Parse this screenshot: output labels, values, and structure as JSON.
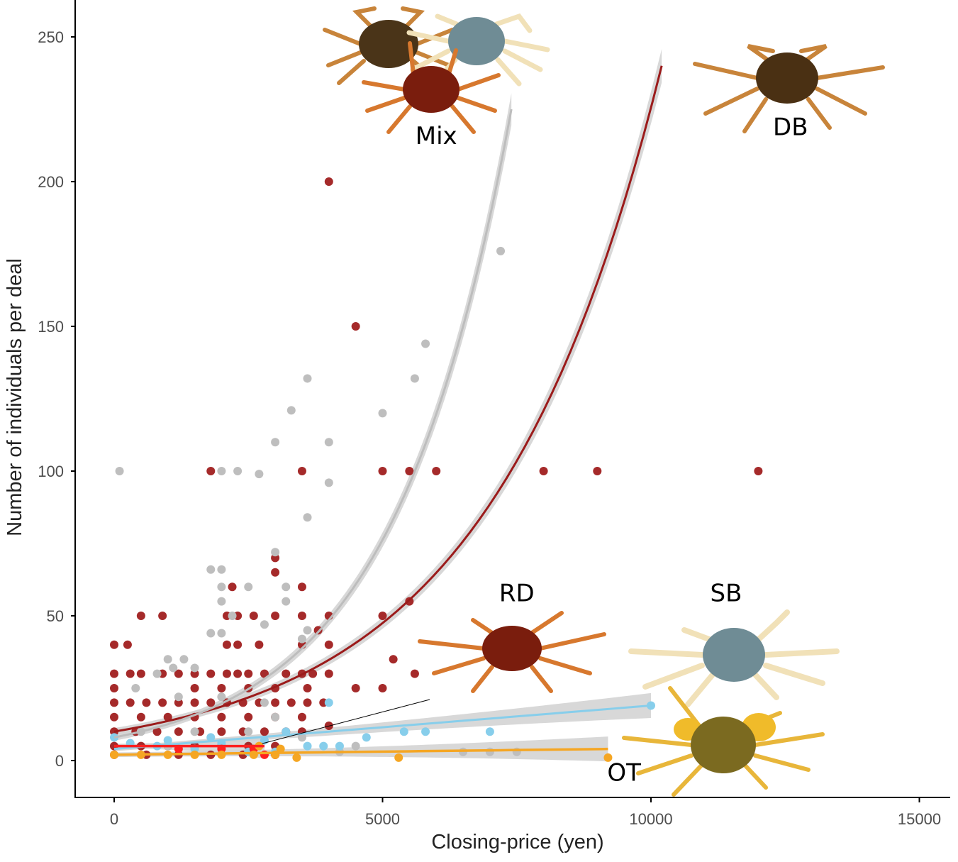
{
  "chart_data": {
    "type": "scatter",
    "title": "",
    "xlabel": "Closing-price (yen)",
    "ylabel": "Number of individuals per deal",
    "xlim": [
      -800,
      15600
    ],
    "ylim": [
      -13,
      262
    ],
    "xticks": [
      0,
      5000,
      10000,
      15000
    ],
    "yticks": [
      0,
      50,
      100,
      150,
      200,
      250
    ],
    "grid": false,
    "legend": "none (series identified by crab photo labels)",
    "series": [
      {
        "name": "DB",
        "color": "#a52a2a",
        "points": [
          [
            4000,
            200
          ],
          [
            4500,
            150
          ],
          [
            1800,
            100
          ],
          [
            3500,
            100
          ],
          [
            5000,
            100
          ],
          [
            5500,
            100
          ],
          [
            6000,
            100
          ],
          [
            8000,
            100
          ],
          [
            9000,
            100
          ],
          [
            12000,
            100
          ],
          [
            3000,
            70
          ],
          [
            3500,
            60
          ],
          [
            2200,
            60
          ],
          [
            5500,
            55
          ],
          [
            3000,
            65
          ],
          [
            500,
            50
          ],
          [
            900,
            50
          ],
          [
            2100,
            50
          ],
          [
            2300,
            50
          ],
          [
            2600,
            50
          ],
          [
            3000,
            50
          ],
          [
            3500,
            50
          ],
          [
            4000,
            50
          ],
          [
            5000,
            50
          ],
          [
            0,
            40
          ],
          [
            250,
            40
          ],
          [
            2100,
            40
          ],
          [
            2300,
            40
          ],
          [
            2700,
            40
          ],
          [
            3500,
            40
          ],
          [
            4000,
            40
          ],
          [
            3800,
            45
          ],
          [
            0,
            30
          ],
          [
            300,
            30
          ],
          [
            500,
            30
          ],
          [
            900,
            30
          ],
          [
            1200,
            30
          ],
          [
            1500,
            30
          ],
          [
            1800,
            30
          ],
          [
            2100,
            30
          ],
          [
            2300,
            30
          ],
          [
            2500,
            30
          ],
          [
            2800,
            30
          ],
          [
            3200,
            30
          ],
          [
            3500,
            30
          ],
          [
            3700,
            30
          ],
          [
            4000,
            30
          ],
          [
            5200,
            35
          ],
          [
            5600,
            30
          ],
          [
            0,
            25
          ],
          [
            1500,
            25
          ],
          [
            2000,
            25
          ],
          [
            2500,
            25
          ],
          [
            3000,
            25
          ],
          [
            3600,
            25
          ],
          [
            4500,
            25
          ],
          [
            5000,
            25
          ],
          [
            0,
            20
          ],
          [
            300,
            20
          ],
          [
            600,
            20
          ],
          [
            900,
            20
          ],
          [
            1200,
            20
          ],
          [
            1500,
            20
          ],
          [
            1800,
            20
          ],
          [
            2100,
            20
          ],
          [
            2400,
            20
          ],
          [
            2700,
            20
          ],
          [
            3000,
            20
          ],
          [
            3300,
            20
          ],
          [
            3600,
            20
          ],
          [
            3900,
            20
          ],
          [
            0,
            15
          ],
          [
            500,
            15
          ],
          [
            1000,
            15
          ],
          [
            1500,
            15
          ],
          [
            2000,
            15
          ],
          [
            2500,
            15
          ],
          [
            3000,
            15
          ],
          [
            3500,
            15
          ],
          [
            0,
            10
          ],
          [
            400,
            10
          ],
          [
            800,
            10
          ],
          [
            1200,
            10
          ],
          [
            1600,
            10
          ],
          [
            2000,
            10
          ],
          [
            2400,
            10
          ],
          [
            2800,
            10
          ],
          [
            3200,
            10
          ],
          [
            3500,
            10
          ],
          [
            4000,
            12
          ],
          [
            0,
            5
          ],
          [
            500,
            5
          ],
          [
            1000,
            5
          ],
          [
            1500,
            5
          ],
          [
            2000,
            5
          ],
          [
            2500,
            5
          ],
          [
            3000,
            5
          ],
          [
            0,
            2
          ],
          [
            600,
            2
          ],
          [
            1200,
            2
          ],
          [
            1800,
            2
          ],
          [
            2400,
            2
          ],
          [
            3000,
            2
          ]
        ],
        "trend": {
          "kind": "exponential",
          "from": [
            0,
            10
          ],
          "to": [
            10200,
            240
          ]
        }
      },
      {
        "name": "Mix",
        "color": "#bebebe",
        "points": [
          [
            100,
            100
          ],
          [
            2000,
            100
          ],
          [
            2300,
            100
          ],
          [
            2700,
            99
          ],
          [
            3000,
            110
          ],
          [
            4000,
            110
          ],
          [
            3300,
            121
          ],
          [
            3600,
            132
          ],
          [
            5000,
            120
          ],
          [
            5600,
            132
          ],
          [
            5800,
            144
          ],
          [
            7200,
            176
          ],
          [
            4000,
            96
          ],
          [
            3600,
            84
          ],
          [
            3000,
            72
          ],
          [
            1800,
            66
          ],
          [
            2000,
            66
          ],
          [
            2000,
            60
          ],
          [
            2500,
            60
          ],
          [
            3200,
            60
          ],
          [
            2000,
            55
          ],
          [
            3200,
            55
          ],
          [
            2200,
            50
          ],
          [
            3600,
            45
          ],
          [
            2800,
            47
          ],
          [
            1800,
            44
          ],
          [
            2000,
            44
          ],
          [
            3500,
            42
          ],
          [
            1000,
            35
          ],
          [
            1300,
            35
          ],
          [
            800,
            30
          ],
          [
            1100,
            32
          ],
          [
            1500,
            32
          ],
          [
            400,
            25
          ],
          [
            1200,
            22
          ],
          [
            2000,
            22
          ],
          [
            2800,
            20
          ],
          [
            3000,
            15
          ],
          [
            500,
            10
          ],
          [
            1500,
            10
          ],
          [
            2500,
            10
          ],
          [
            3500,
            8
          ],
          [
            4500,
            5
          ],
          [
            3000,
            2
          ],
          [
            4200,
            3
          ],
          [
            7000,
            3
          ],
          [
            7500,
            3
          ],
          [
            6500,
            3
          ],
          [
            1000,
            5
          ]
        ],
        "trend": {
          "kind": "exponential",
          "from": [
            0,
            8
          ],
          "to": [
            7400,
            225
          ]
        }
      },
      {
        "name": "SB",
        "color": "#87ceeb",
        "points": [
          [
            0,
            8
          ],
          [
            300,
            6
          ],
          [
            800,
            5
          ],
          [
            1500,
            4
          ],
          [
            2000,
            6
          ],
          [
            2500,
            3
          ],
          [
            3000,
            3
          ],
          [
            3200,
            10
          ],
          [
            3600,
            5
          ],
          [
            3900,
            5
          ],
          [
            4000,
            20
          ],
          [
            4200,
            5
          ],
          [
            4700,
            8
          ],
          [
            5400,
            10
          ],
          [
            5800,
            10
          ],
          [
            7000,
            10
          ],
          [
            10000,
            19
          ],
          [
            2800,
            7
          ],
          [
            1800,
            8
          ],
          [
            1000,
            7
          ]
        ],
        "trend": {
          "kind": "linear",
          "from": [
            0,
            4
          ],
          "to": [
            10000,
            19
          ]
        }
      },
      {
        "name": "RD",
        "color": "#ff2020",
        "points": [
          [
            1200,
            4
          ],
          [
            2000,
            4
          ],
          [
            2600,
            4
          ],
          [
            2800,
            2
          ],
          [
            3000,
            2
          ]
        ],
        "trend": {
          "kind": "linear",
          "from": [
            0,
            5
          ],
          "to": [
            2800,
            5
          ]
        }
      },
      {
        "name": "OT",
        "color": "#f5a623",
        "points": [
          [
            0,
            2
          ],
          [
            500,
            2
          ],
          [
            1000,
            2
          ],
          [
            1500,
            2
          ],
          [
            2000,
            2
          ],
          [
            2600,
            2
          ],
          [
            3000,
            2
          ],
          [
            3400,
            1
          ],
          [
            5300,
            1
          ],
          [
            9200,
            1
          ],
          [
            2700,
            5
          ],
          [
            3100,
            4
          ]
        ],
        "trend": {
          "kind": "linear",
          "from": [
            0,
            2
          ],
          "to": [
            9200,
            4
          ]
        }
      }
    ],
    "annotations": [
      {
        "text": "Mix",
        "at": [
          6000,
          213
        ]
      },
      {
        "text": "DB",
        "at": [
          12600,
          216
        ]
      },
      {
        "text": "RD",
        "at": [
          7500,
          55
        ]
      },
      {
        "text": "SB",
        "at": [
          11400,
          55
        ]
      },
      {
        "text": "OT",
        "at": [
          9500,
          -7
        ]
      }
    ]
  }
}
